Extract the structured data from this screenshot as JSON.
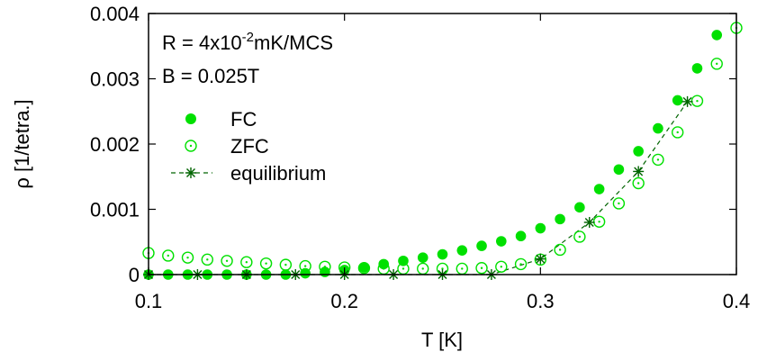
{
  "chart_data": {
    "type": "scatter",
    "xlabel": "T [K]",
    "ylabel": "ρ [1/tetra.]",
    "xlim": [
      0.1,
      0.4
    ],
    "ylim": [
      0,
      0.004
    ],
    "x_ticks": [
      "0.1",
      "0.2",
      "0.3",
      "0.4"
    ],
    "y_ticks": [
      "0",
      "0.001",
      "0.002",
      "0.003",
      "0.004"
    ],
    "grid": false,
    "legend_position": "top-left",
    "annotations": {
      "line1_prefix": "R = 4x10",
      "line1_exponent": "-2",
      "line1_suffix": "mK/MCS",
      "line2": "B = 0.025T"
    },
    "series": [
      {
        "name": "FC",
        "marker": "filled-circle",
        "color": "#00e000",
        "x": [
          0.1,
          0.11,
          0.12,
          0.13,
          0.14,
          0.15,
          0.16,
          0.17,
          0.18,
          0.19,
          0.2,
          0.21,
          0.22,
          0.23,
          0.24,
          0.25,
          0.26,
          0.27,
          0.28,
          0.29,
          0.3,
          0.31,
          0.32,
          0.33,
          0.34,
          0.35,
          0.36,
          0.37,
          0.38,
          0.39
        ],
        "y": [
          0.0,
          0.0,
          0.0,
          0.0,
          0.0,
          0.0,
          0.0,
          0.0,
          2e-05,
          4e-05,
          7e-05,
          0.00011,
          0.00016,
          0.00021,
          0.00026,
          0.00031,
          0.00037,
          0.00044,
          0.00051,
          0.00059,
          0.00071,
          0.00085,
          0.00103,
          0.00131,
          0.00161,
          0.00189,
          0.00224,
          0.00267,
          0.00316,
          0.00367
        ]
      },
      {
        "name": "ZFC",
        "marker": "open-circle-dot",
        "color": "#00e000",
        "x": [
          0.1,
          0.11,
          0.12,
          0.13,
          0.14,
          0.15,
          0.16,
          0.17,
          0.18,
          0.19,
          0.2,
          0.21,
          0.22,
          0.23,
          0.24,
          0.25,
          0.26,
          0.27,
          0.28,
          0.29,
          0.3,
          0.31,
          0.32,
          0.33,
          0.34,
          0.35,
          0.36,
          0.37,
          0.38,
          0.39,
          0.4
        ],
        "y": [
          0.00033,
          0.00029,
          0.00026,
          0.00023,
          0.00021,
          0.00019,
          0.00017,
          0.00015,
          0.00013,
          0.00012,
          0.00011,
          0.0001,
          9e-05,
          9e-05,
          9e-05,
          9e-05,
          9e-05,
          0.0001,
          0.00012,
          0.00016,
          0.00023,
          0.00038,
          0.00058,
          0.00081,
          0.00109,
          0.0014,
          0.00176,
          0.00218,
          0.00266,
          0.00323,
          0.00378
        ]
      },
      {
        "name": "equilibrium",
        "marker": "star",
        "line": "dashed",
        "color": "#006400",
        "x": [
          0.1,
          0.125,
          0.15,
          0.175,
          0.2,
          0.225,
          0.25,
          0.275,
          0.3,
          0.325,
          0.35,
          0.375
        ],
        "y": [
          0.0,
          0.0,
          0.0,
          0.0,
          0.0,
          0.0,
          0.0,
          0.0,
          0.00024,
          0.0008,
          0.00158,
          0.00265
        ]
      }
    ]
  }
}
